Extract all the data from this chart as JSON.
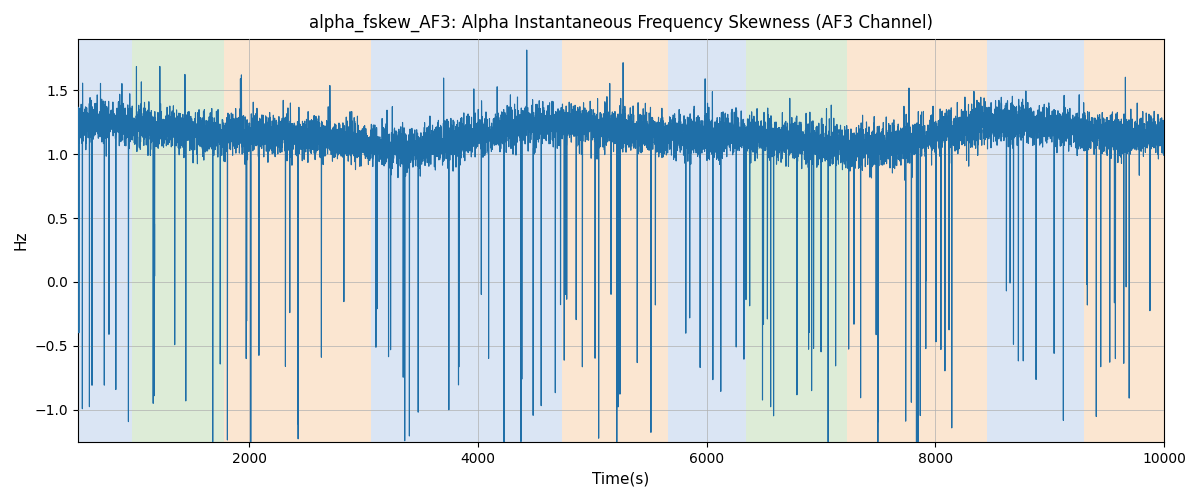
{
  "title": "alpha_fskew_AF3: Alpha Instantaneous Frequency Skewness (AF3 Channel)",
  "xlabel": "Time(s)",
  "ylabel": "Hz",
  "xlim": [
    500,
    10000
  ],
  "ylim": [
    -1.25,
    1.9
  ],
  "line_color": "#1f6fa8",
  "line_width": 0.8,
  "background_color": "#ffffff",
  "grid": true,
  "grid_color": "#b0b0b0",
  "grid_linewidth": 0.5,
  "bands": [
    {
      "xmin": 500,
      "xmax": 970,
      "color": "#aec6e8",
      "alpha": 0.45
    },
    {
      "xmin": 970,
      "xmax": 1780,
      "color": "#b5d5a8",
      "alpha": 0.45
    },
    {
      "xmin": 1780,
      "xmax": 3060,
      "color": "#f7c89b",
      "alpha": 0.45
    },
    {
      "xmin": 3060,
      "xmax": 4730,
      "color": "#aec6e8",
      "alpha": 0.45
    },
    {
      "xmin": 4730,
      "xmax": 5660,
      "color": "#f7c89b",
      "alpha": 0.45
    },
    {
      "xmin": 5660,
      "xmax": 6340,
      "color": "#aec6e8",
      "alpha": 0.45
    },
    {
      "xmin": 6340,
      "xmax": 7230,
      "color": "#b5d5a8",
      "alpha": 0.45
    },
    {
      "xmin": 7230,
      "xmax": 8450,
      "color": "#f7c89b",
      "alpha": 0.45
    },
    {
      "xmin": 8450,
      "xmax": 9300,
      "color": "#aec6e8",
      "alpha": 0.45
    },
    {
      "xmin": 9300,
      "xmax": 10000,
      "color": "#f7c89b",
      "alpha": 0.45
    }
  ],
  "xticks": [
    2000,
    4000,
    6000,
    8000,
    10000
  ],
  "yticks": [
    -1.0,
    -0.5,
    0.0,
    0.5,
    1.0,
    1.5
  ],
  "seed": 42,
  "n_points": 10000,
  "x_start": 500,
  "x_end": 10000
}
